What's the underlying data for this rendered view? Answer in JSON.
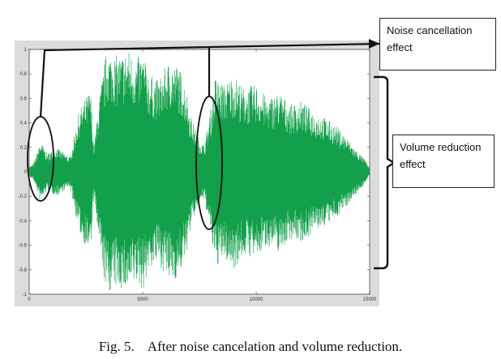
{
  "chart_data": {
    "type": "line",
    "title": "",
    "xlabel": "",
    "ylabel": "",
    "xlim": [
      0,
      15000
    ],
    "ylim": [
      -1,
      1
    ],
    "x_ticks": [
      "0",
      "5000",
      "10000",
      "15000"
    ],
    "y_ticks": [
      "1",
      "0.8",
      "0.6",
      "0.4",
      "0.2",
      "0",
      "-0.2",
      "-0.4",
      "-0.6",
      "-0.8",
      "-1"
    ],
    "grid": false,
    "series": [
      {
        "color": "#12a04a",
        "envelope": {
          "x": [
            0,
            200,
            500,
            800,
            1200,
            1800,
            2200,
            2700,
            2850,
            3050,
            3400,
            3900,
            4400,
            4700,
            5000,
            5300,
            5700,
            6200,
            6600,
            6900,
            7100,
            7400,
            7700,
            7900,
            8200,
            8600,
            9000,
            9500,
            10000,
            10500,
            11000,
            11500,
            12000,
            12500,
            13000,
            13500,
            14000,
            14400,
            14800,
            15000
          ],
          "amplitude": [
            0.04,
            0.07,
            0.25,
            0.15,
            0.2,
            0.12,
            0.5,
            0.68,
            0.2,
            0.55,
            1.0,
            0.95,
            1.0,
            0.92,
            0.98,
            0.8,
            0.75,
            0.92,
            0.86,
            0.7,
            0.48,
            0.3,
            0.22,
            0.4,
            0.78,
            0.72,
            0.8,
            0.68,
            0.72,
            0.6,
            0.66,
            0.55,
            0.58,
            0.5,
            0.45,
            0.38,
            0.28,
            0.18,
            0.1,
            0.03
          ]
        }
      }
    ]
  },
  "annotations": {
    "noise_label": "Noise cancellation effect",
    "volume_label": "Volume reduction effect"
  },
  "caption": "Fig. 5.    After noise cancelation and volume reduction."
}
